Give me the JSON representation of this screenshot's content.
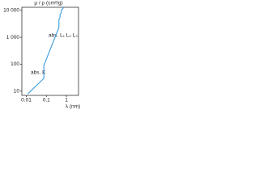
{
  "chart_data": {
    "type": "line",
    "y_label": "μ / ρ (cm²/g)",
    "x_label": "λ (nm)",
    "log_x": true,
    "log_y": true,
    "xlim": [
      0.006,
      4
    ],
    "ylim": [
      7,
      13000
    ],
    "xticks": [
      0.01,
      0.1,
      1
    ],
    "yticks": [
      10,
      100,
      {
        "value": 1000,
        "label": "1 000"
      },
      {
        "value": 10000,
        "label": "10 000"
      }
    ],
    "annotations": [
      "abs. K",
      "abs. L₁ L₂ L₃"
    ],
    "series": [
      {
        "name": null,
        "color": "#4aa3df",
        "x": [
          0.012,
          0.075,
          0.075,
          0.42,
          0.42,
          0.48,
          0.48,
          0.55,
          0.55,
          0.75
        ],
        "values": [
          8,
          30,
          90,
          2300,
          4500,
          5500,
          7000,
          8000,
          10000,
          13000
        ]
      }
    ]
  }
}
